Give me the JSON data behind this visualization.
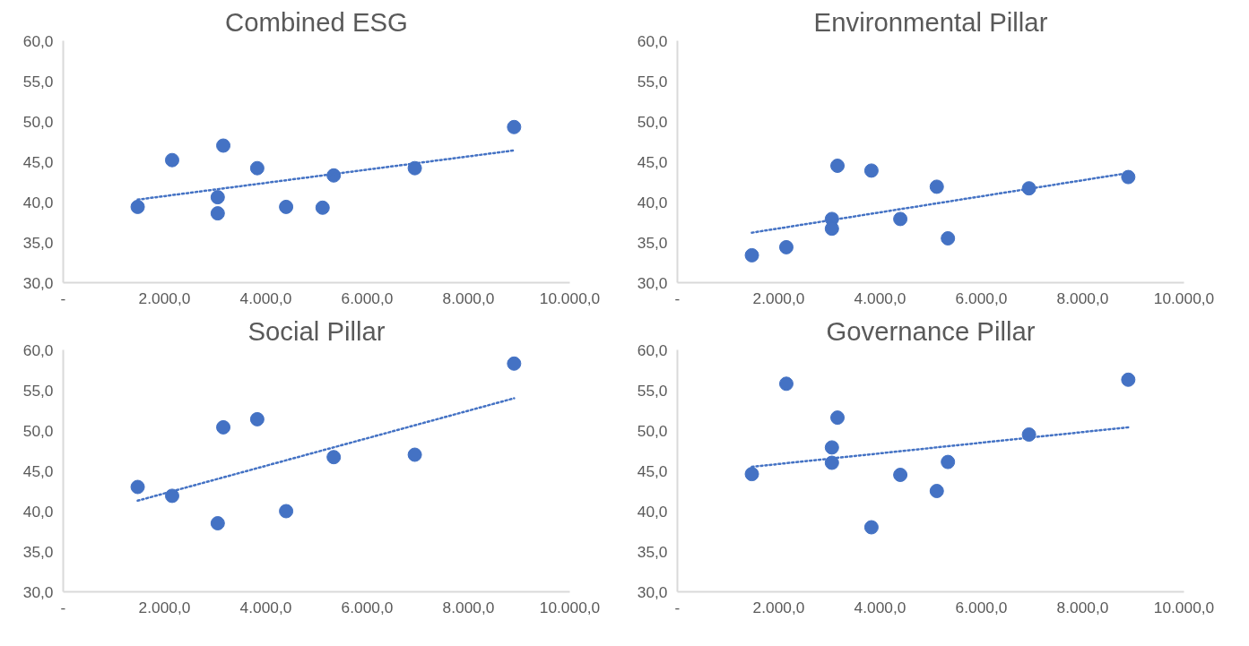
{
  "chart_data": [
    {
      "type": "scatter",
      "title": "Combined ESG",
      "xlim": [
        0,
        10000
      ],
      "ylim": [
        30,
        60
      ],
      "xticks": [
        {
          "value": 0,
          "label": "-"
        },
        {
          "value": 2000,
          "label": "2.000,0"
        },
        {
          "value": 4000,
          "label": "4.000,0"
        },
        {
          "value": 6000,
          "label": "6.000,0"
        },
        {
          "value": 8000,
          "label": "8.000,0"
        },
        {
          "value": 10000,
          "label": "10.000,0"
        }
      ],
      "yticks": [
        {
          "value": 30,
          "label": "30,0"
        },
        {
          "value": 35,
          "label": "35,0"
        },
        {
          "value": 40,
          "label": "40,0"
        },
        {
          "value": 45,
          "label": "45,0"
        },
        {
          "value": 50,
          "label": "50,0"
        },
        {
          "value": 55,
          "label": "55,0"
        },
        {
          "value": 60,
          "label": "60,0"
        }
      ],
      "series": [
        {
          "marker": "circle",
          "color": "#4472c4",
          "x": [
            1470,
            2150,
            3050,
            3050,
            3160,
            3830,
            4400,
            5120,
            5340,
            6940,
            8900
          ],
          "values": [
            39.4,
            45.2,
            40.6,
            38.6,
            47.0,
            44.2,
            39.4,
            39.3,
            43.3,
            44.2,
            49.3
          ]
        },
        {
          "type": "line",
          "color": "#4472c4",
          "line_style": "dotted",
          "x": [
            1470,
            8900
          ],
          "values": [
            40.3,
            46.4
          ]
        }
      ]
    },
    {
      "type": "scatter",
      "title": "Environmental Pillar",
      "xlim": [
        0,
        10000
      ],
      "ylim": [
        30,
        60
      ],
      "xticks": [
        {
          "value": 0,
          "label": "-"
        },
        {
          "value": 2000,
          "label": "2.000,0"
        },
        {
          "value": 4000,
          "label": "4.000,0"
        },
        {
          "value": 6000,
          "label": "6.000,0"
        },
        {
          "value": 8000,
          "label": "8.000,0"
        },
        {
          "value": 10000,
          "label": "10.000,0"
        }
      ],
      "yticks": [
        {
          "value": 30,
          "label": "30,0"
        },
        {
          "value": 35,
          "label": "35,0"
        },
        {
          "value": 40,
          "label": "40,0"
        },
        {
          "value": 45,
          "label": "45,0"
        },
        {
          "value": 50,
          "label": "50,0"
        },
        {
          "value": 55,
          "label": "55,0"
        },
        {
          "value": 60,
          "label": "60,0"
        }
      ],
      "series": [
        {
          "marker": "circle",
          "color": "#4472c4",
          "x": [
            1470,
            2150,
            3050,
            3050,
            3160,
            3830,
            4400,
            5120,
            5340,
            6940,
            8900
          ],
          "values": [
            33.4,
            34.4,
            37.9,
            36.7,
            44.5,
            43.9,
            37.9,
            41.9,
            35.5,
            41.7,
            43.1
          ]
        },
        {
          "type": "line",
          "color": "#4472c4",
          "line_style": "dotted",
          "x": [
            1470,
            8900
          ],
          "values": [
            36.2,
            43.6
          ]
        }
      ]
    },
    {
      "type": "scatter",
      "title": "Social Pillar",
      "xlim": [
        0,
        10000
      ],
      "ylim": [
        30,
        60
      ],
      "xticks": [
        {
          "value": 0,
          "label": "-"
        },
        {
          "value": 2000,
          "label": "2.000,0"
        },
        {
          "value": 4000,
          "label": "4.000,0"
        },
        {
          "value": 6000,
          "label": "6.000,0"
        },
        {
          "value": 8000,
          "label": "8.000,0"
        },
        {
          "value": 10000,
          "label": "10.000,0"
        }
      ],
      "yticks": [
        {
          "value": 30,
          "label": "30,0"
        },
        {
          "value": 35,
          "label": "35,0"
        },
        {
          "value": 40,
          "label": "40,0"
        },
        {
          "value": 45,
          "label": "45,0"
        },
        {
          "value": 50,
          "label": "50,0"
        },
        {
          "value": 55,
          "label": "55,0"
        },
        {
          "value": 60,
          "label": "60,0"
        }
      ],
      "series": [
        {
          "marker": "circle",
          "color": "#4472c4",
          "x": [
            1470,
            2150,
            3050,
            3160,
            3830,
            4400,
            5340,
            6940,
            8900
          ],
          "values": [
            43.0,
            41.9,
            38.5,
            50.4,
            51.4,
            40.0,
            46.7,
            47.0,
            58.3
          ]
        },
        {
          "type": "line",
          "color": "#4472c4",
          "line_style": "dotted",
          "x": [
            1470,
            8900
          ],
          "values": [
            41.3,
            54.0
          ]
        }
      ]
    },
    {
      "type": "scatter",
      "title": "Governance Pillar",
      "xlim": [
        0,
        10000
      ],
      "ylim": [
        30,
        60
      ],
      "xticks": [
        {
          "value": 0,
          "label": "-"
        },
        {
          "value": 2000,
          "label": "2.000,0"
        },
        {
          "value": 4000,
          "label": "4.000,0"
        },
        {
          "value": 6000,
          "label": "6.000,0"
        },
        {
          "value": 8000,
          "label": "8.000,0"
        },
        {
          "value": 10000,
          "label": "10.000,0"
        }
      ],
      "yticks": [
        {
          "value": 30,
          "label": "30,0"
        },
        {
          "value": 35,
          "label": "35,0"
        },
        {
          "value": 40,
          "label": "40,0"
        },
        {
          "value": 45,
          "label": "45,0"
        },
        {
          "value": 50,
          "label": "50,0"
        },
        {
          "value": 55,
          "label": "55,0"
        },
        {
          "value": 60,
          "label": "60,0"
        }
      ],
      "series": [
        {
          "marker": "circle",
          "color": "#4472c4",
          "x": [
            1470,
            2150,
            3050,
            3050,
            3160,
            3830,
            4400,
            5120,
            5340,
            6940,
            8900
          ],
          "values": [
            44.6,
            55.8,
            47.9,
            46.0,
            51.6,
            38.0,
            44.5,
            42.5,
            46.1,
            49.5,
            56.3
          ]
        },
        {
          "type": "line",
          "color": "#4472c4",
          "line_style": "dotted",
          "x": [
            1470,
            8900
          ],
          "values": [
            45.5,
            50.4
          ]
        }
      ]
    }
  ]
}
